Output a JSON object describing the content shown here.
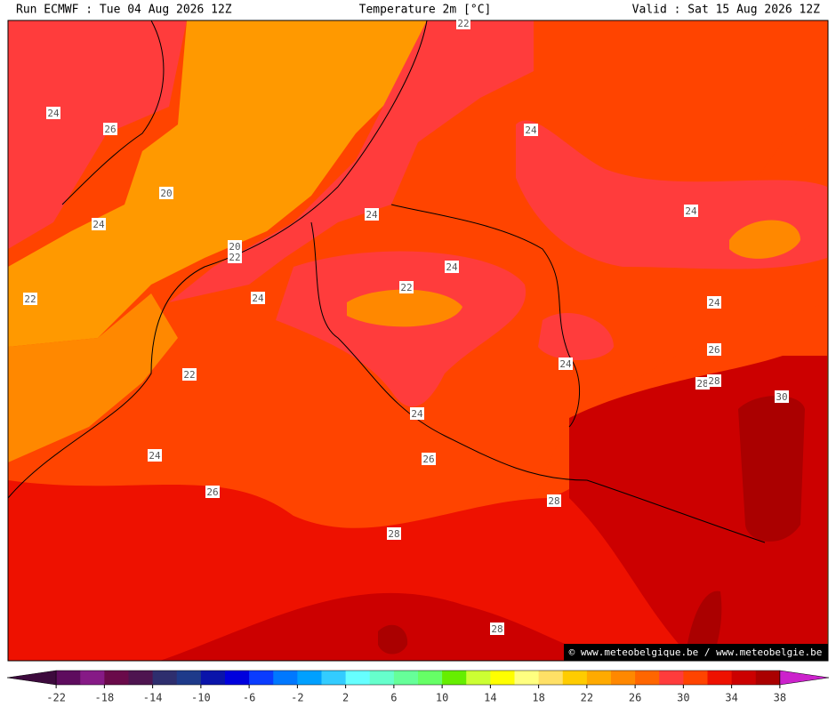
{
  "header": {
    "run": "Run ECMWF : Tue 04 Aug 2026 12Z",
    "title": "Temperature 2m [°C]",
    "valid": "Valid : Sat 15 Aug 2026 12Z"
  },
  "credit": "© www.meteobelgique.be / www.meteobelgie.be",
  "contour_labels": [
    "24",
    "26",
    "20",
    "24",
    "20",
    "22",
    "22",
    "24",
    "24",
    "22",
    "24",
    "24",
    "22",
    "24",
    "24",
    "26",
    "24",
    "28",
    "28",
    "30",
    "22",
    "24",
    "26",
    "24",
    "26",
    "28",
    "28",
    "28"
  ],
  "colorbar": {
    "range": [
      -24,
      40
    ],
    "colors": [
      "#3d0a3d",
      "#5e0c5e",
      "#861a86",
      "#6a0a4a",
      "#4e1450",
      "#2e2e6e",
      "#1e3a8a",
      "#0a14aa",
      "#0000dd",
      "#0a3cff",
      "#0078ff",
      "#00a0ff",
      "#33ccff",
      "#66ffff",
      "#66ffcc",
      "#66ff99",
      "#66ff66",
      "#66ee00",
      "#ccff33",
      "#ffff00",
      "#ffff80",
      "#ffe066",
      "#ffcc00",
      "#ffaa00",
      "#ff8800",
      "#ff6600",
      "#ff3c3c",
      "#ff4400",
      "#ee1100",
      "#cc0000",
      "#aa0000",
      "#cc22cc"
    ],
    "ticks": [
      -22,
      -18,
      -14,
      -10,
      -6,
      -2,
      2,
      6,
      10,
      14,
      18,
      22,
      26,
      30,
      34,
      38
    ]
  }
}
